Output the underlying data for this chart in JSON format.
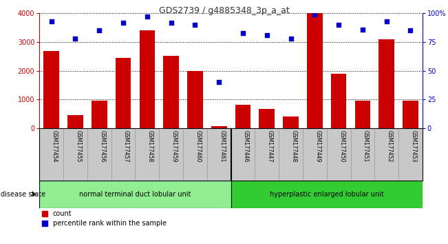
{
  "title": "GDS2739 / g4885348_3p_a_at",
  "samples": [
    "GSM177454",
    "GSM177455",
    "GSM177456",
    "GSM177457",
    "GSM177458",
    "GSM177459",
    "GSM177460",
    "GSM177461",
    "GSM177446",
    "GSM177447",
    "GSM177448",
    "GSM177449",
    "GSM177450",
    "GSM177451",
    "GSM177452",
    "GSM177453"
  ],
  "counts": [
    2680,
    450,
    950,
    2450,
    3400,
    2520,
    1980,
    80,
    820,
    660,
    400,
    4000,
    1900,
    960,
    3100,
    950
  ],
  "percentiles": [
    93,
    78,
    85,
    92,
    97,
    92,
    90,
    40,
    83,
    81,
    78,
    99,
    90,
    86,
    93,
    85
  ],
  "group1_label": "normal terminal duct lobular unit",
  "group2_label": "hyperplastic enlarged lobular unit",
  "group1_count": 8,
  "group2_count": 8,
  "bar_color": "#cc0000",
  "dot_color": "#0000cc",
  "ylim_left": [
    0,
    4000
  ],
  "ylim_right": [
    0,
    100
  ],
  "yticks_left": [
    0,
    1000,
    2000,
    3000,
    4000
  ],
  "yticks_right": [
    0,
    25,
    50,
    75,
    100
  ],
  "group1_color": "#90ee90",
  "group2_color": "#32cd32",
  "disease_state_label": "disease state",
  "legend_count_label": "count",
  "legend_pct_label": "percentile rank within the sample",
  "title_color": "#333333",
  "left_axis_color": "#cc0000",
  "right_axis_color": "#0000cc",
  "sample_box_color": "#c8c8c8",
  "fig_width": 6.51,
  "fig_height": 3.54,
  "dpi": 100
}
